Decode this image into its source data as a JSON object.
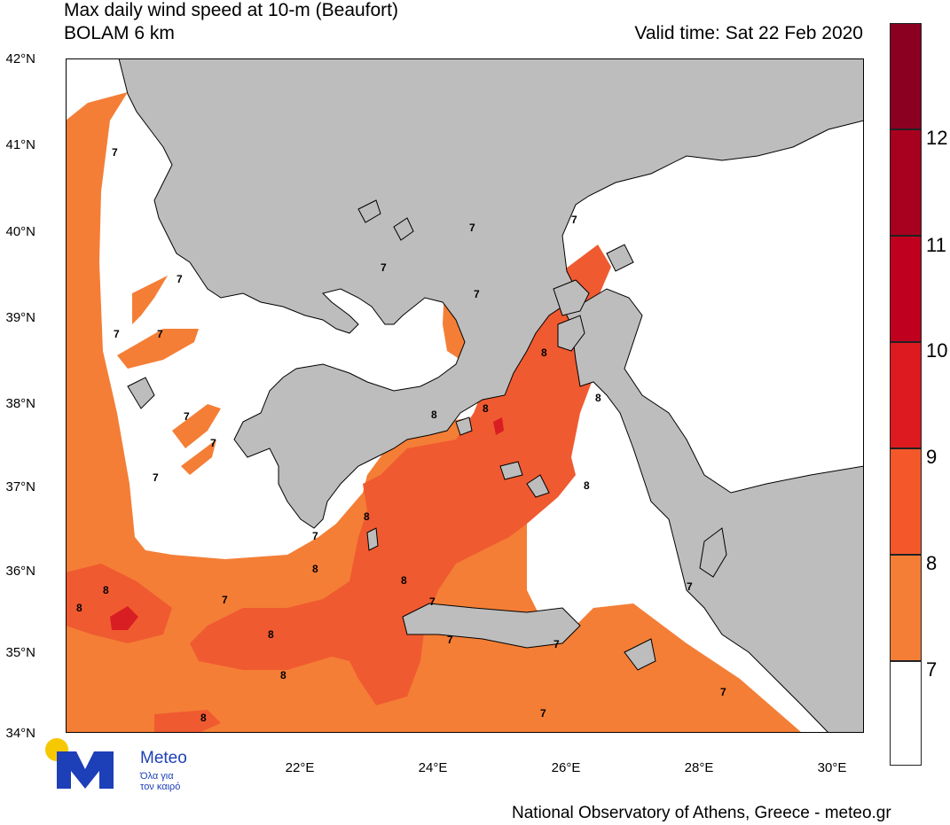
{
  "header": {
    "title_line1": "Max daily wind speed at 10-m (Beaufort)",
    "title_line2": "BOLAM 6 km",
    "valid_time": "Valid time: Sat 22 Feb 2020"
  },
  "map": {
    "lat_labels": [
      "42°N",
      "41°N",
      "40°N",
      "39°N",
      "38°N",
      "37°N",
      "36°N",
      "35°N",
      "34°N"
    ],
    "lon_labels": [
      "22°E",
      "24°E",
      "26°E",
      "28°E",
      "30°E"
    ],
    "contour_labels": [
      "7",
      "7",
      "7",
      "7",
      "7",
      "7",
      "7",
      "7",
      "7",
      "7",
      "7",
      "7",
      "7",
      "7",
      "7",
      "7",
      "7",
      "7",
      "7",
      "8",
      "8",
      "8",
      "8",
      "8",
      "8",
      "8",
      "8",
      "8",
      "8",
      "8",
      "8",
      "8"
    ],
    "colors": {
      "land": "#bdbdbd",
      "sea_bft_lt7": "#ffffff",
      "bft7": "#f47e36",
      "bft8": "#f05a30",
      "bft9": "#d81e22"
    }
  },
  "colorbar": {
    "labels": [
      "12",
      "11",
      "10",
      "9",
      "8",
      "7"
    ],
    "colors": [
      "#8b0021",
      "#a8001f",
      "#c0001f",
      "#dc1a1f",
      "#f4582a",
      "#f57e36",
      "#ffffff"
    ]
  },
  "logo": {
    "name": "Meteo",
    "tagline1": "Όλα για",
    "tagline2": "τον καιρό"
  },
  "footer": {
    "credit": "National Observatory of Athens, Greece - meteo.gr"
  }
}
